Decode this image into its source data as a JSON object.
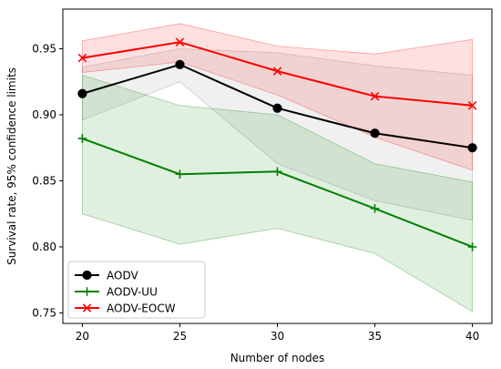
{
  "chart_data": {
    "type": "line",
    "title": "",
    "xlabel": "Number of nodes",
    "ylabel": "Survival rate, 95% confidence limits",
    "x": [
      20,
      25,
      30,
      35,
      40
    ],
    "x_tick_labels": [
      "20",
      "25",
      "30",
      "35",
      "40"
    ],
    "xlim": [
      19,
      41
    ],
    "ylim": [
      0.742,
      0.98
    ],
    "y_ticks": [
      0.75,
      0.8,
      0.85,
      0.9,
      0.95
    ],
    "y_tick_labels": [
      "0.75",
      "0.80",
      "0.85",
      "0.90",
      "0.95"
    ],
    "grid": false,
    "legend_position": "lower-left",
    "series": [
      {
        "name": "AODV",
        "color": "#000000",
        "band_color": "#808080",
        "marker": "circle",
        "values": [
          0.916,
          0.938,
          0.905,
          0.886,
          0.875
        ],
        "lower": [
          0.896,
          0.925,
          0.863,
          0.835,
          0.82
        ],
        "upper": [
          0.936,
          0.95,
          0.947,
          0.937,
          0.93
        ]
      },
      {
        "name": "AODV-UU",
        "color": "#008000",
        "band_color": "#008000",
        "marker": "plus",
        "values": [
          0.882,
          0.855,
          0.857,
          0.829,
          0.8
        ],
        "lower": [
          0.825,
          0.802,
          0.814,
          0.795,
          0.751
        ],
        "upper": [
          0.93,
          0.907,
          0.9,
          0.863,
          0.849
        ]
      },
      {
        "name": "AODV-EOCW",
        "color": "#ff0000",
        "band_color": "#ff0000",
        "marker": "x",
        "values": [
          0.943,
          0.955,
          0.933,
          0.914,
          0.907
        ],
        "lower": [
          0.932,
          0.94,
          0.915,
          0.883,
          0.858
        ],
        "upper": [
          0.956,
          0.969,
          0.952,
          0.946,
          0.957
        ]
      }
    ]
  }
}
